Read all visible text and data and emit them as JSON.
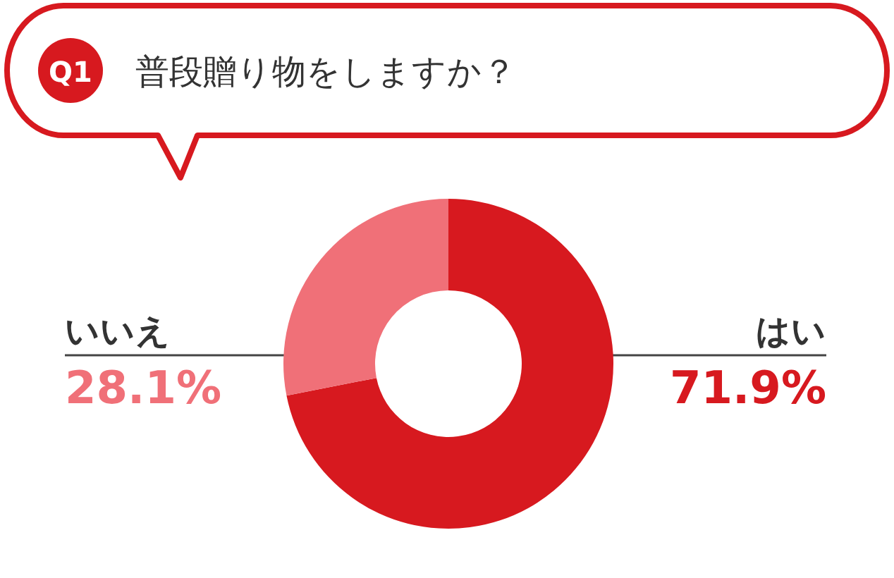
{
  "chart_data": {
    "type": "donut",
    "title": "普段贈り物をしますか？",
    "annotations": [
      "Q1"
    ],
    "categories": [
      "はい",
      "いいえ"
    ],
    "values": [
      71.9,
      28.1
    ],
    "colors": [
      "#d7191f",
      "#f07078"
    ],
    "value_labels": [
      "71.9%",
      "28.1%"
    ]
  }
}
